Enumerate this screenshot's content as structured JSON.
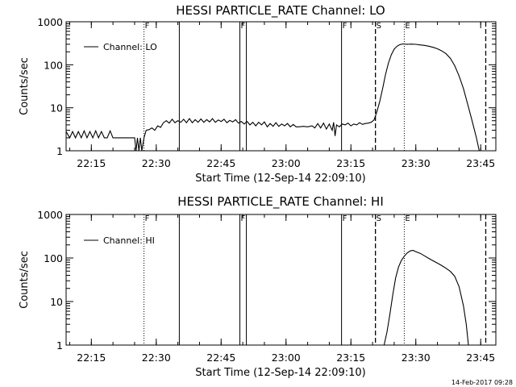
{
  "footer": {
    "timestamp": "14-Feb-2017 09:28"
  },
  "chart_data": [
    {
      "type": "line",
      "title": "HESSI PARTICLE_RATE Channel: LO",
      "xlabel": "Start Time (12-Sep-14 22:09:10)",
      "ylabel": "Counts/sec",
      "yscale": "log",
      "ylim": [
        1,
        1000
      ],
      "xlim": [
        "22:09:10",
        "23:48:30"
      ],
      "x_ticks": [
        "22:15",
        "22:30",
        "22:45",
        "23:00",
        "23:15",
        "23:30",
        "23:45"
      ],
      "y_ticks": [
        "1",
        "10",
        "100",
        "1000"
      ],
      "grid": false,
      "legend": {
        "position": "upper-left",
        "entries": [
          "Channel: LO"
        ]
      },
      "markers": [
        {
          "label": "F",
          "time": "22:27:10",
          "style": "dotted"
        },
        {
          "label": "",
          "time": "22:35:20",
          "style": "solid"
        },
        {
          "label": "F",
          "time": "22:49:20",
          "style": "solid"
        },
        {
          "label": "",
          "time": "22:50:50",
          "style": "solid"
        },
        {
          "label": "F",
          "time": "23:12:50",
          "style": "solid"
        },
        {
          "label": "S",
          "time": "23:20:40",
          "style": "dashed"
        },
        {
          "label": "E",
          "time": "23:27:20",
          "style": "dotted"
        },
        {
          "label": "",
          "time": "23:46:10",
          "style": "dashed"
        }
      ],
      "series": [
        {
          "name": "Channel: LO",
          "points": [
            [
              "22:09:10",
              2.8
            ],
            [
              "22:10:00",
              2.0
            ],
            [
              "22:10:40",
              2.8
            ],
            [
              "22:11:20",
              2.0
            ],
            [
              "22:12:00",
              2.8
            ],
            [
              "22:12:40",
              2.0
            ],
            [
              "22:13:20",
              2.9
            ],
            [
              "22:14:00",
              2.0
            ],
            [
              "22:14:40",
              2.8
            ],
            [
              "22:15:20",
              2.0
            ],
            [
              "22:16:00",
              2.9
            ],
            [
              "22:16:40",
              2.0
            ],
            [
              "22:17:20",
              2.8
            ],
            [
              "22:18:00",
              2.0
            ],
            [
              "22:18:40",
              2.0
            ],
            [
              "22:19:20",
              2.9
            ],
            [
              "22:20:00",
              2.0
            ],
            [
              "22:21:00",
              2.0
            ],
            [
              "22:22:00",
              2.0
            ],
            [
              "22:24:00",
              2.0
            ],
            [
              "22:25:00",
              2.0
            ],
            [
              "22:25:20",
              1.0
            ],
            [
              "22:25:40",
              2.0
            ],
            [
              "22:26:00",
              1.0
            ],
            [
              "22:26:20",
              2.0
            ],
            [
              "22:26:40",
              1.0
            ],
            [
              "22:27:10",
              2.0
            ],
            [
              "22:27:40",
              3.0
            ],
            [
              "22:28:20",
              3.1
            ],
            [
              "22:29:00",
              3.4
            ],
            [
              "22:29:40",
              3.0
            ],
            [
              "22:30:20",
              3.8
            ],
            [
              "22:31:00",
              3.5
            ],
            [
              "22:31:40",
              4.5
            ],
            [
              "22:32:20",
              5.0
            ],
            [
              "22:33:00",
              4.4
            ],
            [
              "22:33:40",
              5.4
            ],
            [
              "22:34:20",
              4.5
            ],
            [
              "22:35:00",
              5.0
            ],
            [
              "22:35:40",
              4.6
            ],
            [
              "22:36:20",
              5.4
            ],
            [
              "22:37:00",
              4.5
            ],
            [
              "22:37:40",
              5.6
            ],
            [
              "22:38:20",
              4.5
            ],
            [
              "22:39:00",
              5.3
            ],
            [
              "22:39:40",
              4.6
            ],
            [
              "22:40:20",
              5.5
            ],
            [
              "22:41:00",
              4.6
            ],
            [
              "22:41:40",
              5.3
            ],
            [
              "22:42:20",
              4.7
            ],
            [
              "22:43:00",
              5.6
            ],
            [
              "22:43:40",
              4.6
            ],
            [
              "22:44:20",
              5.2
            ],
            [
              "22:45:00",
              4.8
            ],
            [
              "22:45:40",
              5.4
            ],
            [
              "22:46:20",
              4.5
            ],
            [
              "22:47:00",
              5.1
            ],
            [
              "22:47:40",
              4.7
            ],
            [
              "22:48:20",
              5.3
            ],
            [
              "22:49:00",
              4.4
            ],
            [
              "22:49:40",
              4.8
            ],
            [
              "22:50:20",
              4.2
            ],
            [
              "22:51:00",
              4.8
            ],
            [
              "22:51:40",
              4.0
            ],
            [
              "22:52:20",
              4.6
            ],
            [
              "22:53:00",
              3.8
            ],
            [
              "22:53:40",
              4.6
            ],
            [
              "22:54:20",
              4.0
            ],
            [
              "22:55:00",
              4.7
            ],
            [
              "22:55:40",
              3.6
            ],
            [
              "22:56:20",
              4.3
            ],
            [
              "22:57:00",
              3.7
            ],
            [
              "22:57:40",
              4.5
            ],
            [
              "22:58:20",
              3.7
            ],
            [
              "22:59:00",
              4.2
            ],
            [
              "22:59:40",
              3.8
            ],
            [
              "23:00:20",
              4.3
            ],
            [
              "23:01:00",
              3.6
            ],
            [
              "23:01:40",
              4.1
            ],
            [
              "23:02:20",
              3.6
            ],
            [
              "23:03:00",
              3.6
            ],
            [
              "23:04:00",
              3.7
            ],
            [
              "23:05:00",
              3.6
            ],
            [
              "23:06:00",
              3.8
            ],
            [
              "23:06:40",
              3.4
            ],
            [
              "23:07:20",
              4.3
            ],
            [
              "23:08:00",
              3.4
            ],
            [
              "23:08:40",
              4.4
            ],
            [
              "23:09:20",
              3.2
            ],
            [
              "23:10:00",
              4.2
            ],
            [
              "23:10:40",
              3.0
            ],
            [
              "23:11:00",
              4.6
            ],
            [
              "23:11:20",
              2.2
            ],
            [
              "23:11:40",
              4.0
            ],
            [
              "23:12:20",
              3.6
            ],
            [
              "23:13:00",
              4.2
            ],
            [
              "23:13:40",
              4.0
            ],
            [
              "23:14:20",
              4.4
            ],
            [
              "23:15:00",
              3.8
            ],
            [
              "23:15:40",
              4.2
            ],
            [
              "23:16:20",
              4.0
            ],
            [
              "23:17:00",
              4.5
            ],
            [
              "23:17:40",
              4.1
            ],
            [
              "23:18:20",
              4.3
            ],
            [
              "23:19:00",
              4.4
            ],
            [
              "23:19:40",
              4.6
            ],
            [
              "23:20:20",
              5.2
            ],
            [
              "23:21:00",
              8
            ],
            [
              "23:21:40",
              14
            ],
            [
              "23:22:20",
              28
            ],
            [
              "23:23:00",
              60
            ],
            [
              "23:23:40",
              110
            ],
            [
              "23:24:20",
              170
            ],
            [
              "23:25:00",
              230
            ],
            [
              "23:25:40",
              270
            ],
            [
              "23:26:20",
              295
            ],
            [
              "23:27:00",
              305
            ],
            [
              "23:28:00",
              300
            ],
            [
              "23:29:00",
              302
            ],
            [
              "23:30:00",
              298
            ],
            [
              "23:31:00",
              290
            ],
            [
              "23:32:00",
              282
            ],
            [
              "23:33:00",
              270
            ],
            [
              "23:34:00",
              255
            ],
            [
              "23:35:00",
              235
            ],
            [
              "23:36:00",
              210
            ],
            [
              "23:37:00",
              180
            ],
            [
              "23:38:00",
              140
            ],
            [
              "23:39:00",
              95
            ],
            [
              "23:40:00",
              55
            ],
            [
              "23:41:00",
              28
            ],
            [
              "23:42:00",
              12
            ],
            [
              "23:43:00",
              5
            ],
            [
              "23:44:00",
              2
            ],
            [
              "23:44:40",
              1
            ]
          ]
        }
      ]
    },
    {
      "type": "line",
      "title": "HESSI PARTICLE_RATE Channel: HI",
      "xlabel": "Start Time (12-Sep-14 22:09:10)",
      "ylabel": "Counts/sec",
      "yscale": "log",
      "ylim": [
        1,
        1000
      ],
      "xlim": [
        "22:09:10",
        "23:48:30"
      ],
      "x_ticks": [
        "22:15",
        "22:30",
        "22:45",
        "23:00",
        "23:15",
        "23:30",
        "23:45"
      ],
      "y_ticks": [
        "1",
        "10",
        "100",
        "1000"
      ],
      "grid": false,
      "legend": {
        "position": "upper-left",
        "entries": [
          "Channel: HI"
        ]
      },
      "markers": [
        {
          "label": "F",
          "time": "22:27:10",
          "style": "dotted"
        },
        {
          "label": "",
          "time": "22:35:20",
          "style": "solid"
        },
        {
          "label": "F",
          "time": "22:49:20",
          "style": "solid"
        },
        {
          "label": "",
          "time": "22:50:50",
          "style": "solid"
        },
        {
          "label": "F",
          "time": "23:12:50",
          "style": "solid"
        },
        {
          "label": "S",
          "time": "23:20:40",
          "style": "dashed"
        },
        {
          "label": "E",
          "time": "23:27:20",
          "style": "dotted"
        },
        {
          "label": "",
          "time": "23:46:10",
          "style": "dashed"
        }
      ],
      "series": [
        {
          "name": "Channel: HI",
          "points": [
            [
              "23:22:40",
              1
            ],
            [
              "23:23:20",
              2
            ],
            [
              "23:24:00",
              5
            ],
            [
              "23:24:40",
              14
            ],
            [
              "23:25:20",
              35
            ],
            [
              "23:26:00",
              62
            ],
            [
              "23:26:40",
              88
            ],
            [
              "23:27:20",
              110
            ],
            [
              "23:28:00",
              130
            ],
            [
              "23:28:40",
              145
            ],
            [
              "23:29:20",
              150
            ],
            [
              "23:30:00",
              140
            ],
            [
              "23:31:00",
              128
            ],
            [
              "23:32:00",
              112
            ],
            [
              "23:33:00",
              98
            ],
            [
              "23:34:00",
              86
            ],
            [
              "23:35:00",
              76
            ],
            [
              "23:36:00",
              67
            ],
            [
              "23:37:00",
              58
            ],
            [
              "23:38:00",
              49
            ],
            [
              "23:39:00",
              38
            ],
            [
              "23:40:00",
              22
            ],
            [
              "23:41:00",
              8
            ],
            [
              "23:41:40",
              3
            ],
            [
              "23:42:10",
              1
            ]
          ]
        }
      ]
    }
  ]
}
